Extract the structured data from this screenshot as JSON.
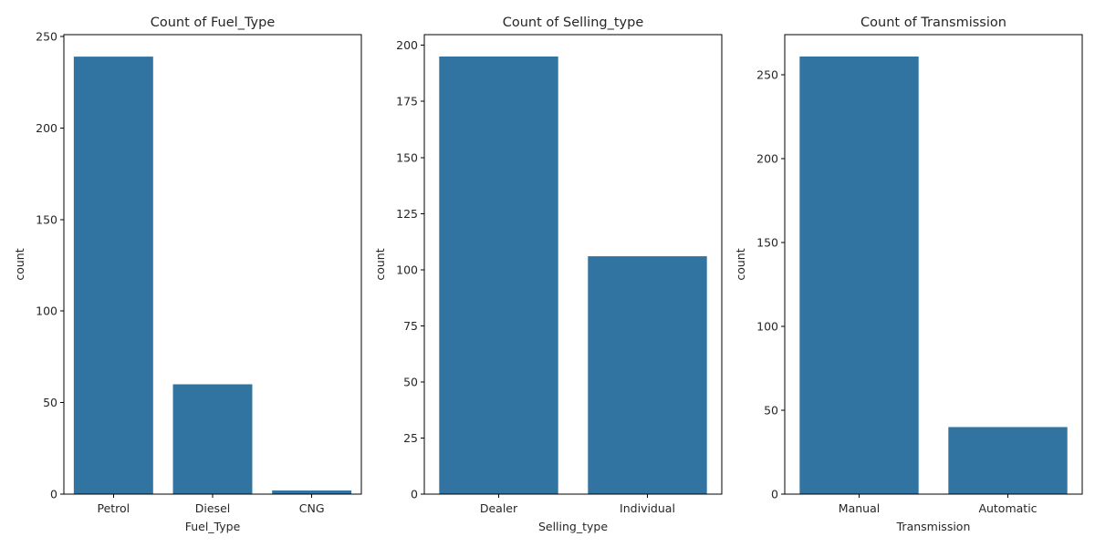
{
  "bar_color": "#3274a1",
  "chart_data": [
    {
      "type": "bar",
      "title": "Count of Fuel_Type",
      "xlabel": "Fuel_Type",
      "ylabel": "count",
      "categories": [
        "Petrol",
        "Diesel",
        "CNG"
      ],
      "values": [
        239,
        60,
        2
      ],
      "ylim": [
        0,
        251
      ],
      "yticks": [
        0,
        50,
        100,
        150,
        200,
        250
      ]
    },
    {
      "type": "bar",
      "title": "Count of Selling_type",
      "xlabel": "Selling_type",
      "ylabel": "count",
      "categories": [
        "Dealer",
        "Individual"
      ],
      "values": [
        195,
        106
      ],
      "ylim": [
        0,
        204.75
      ],
      "yticks": [
        0,
        25,
        50,
        75,
        100,
        125,
        150,
        175,
        200
      ]
    },
    {
      "type": "bar",
      "title": "Count of Transmission",
      "xlabel": "Transmission",
      "ylabel": "count",
      "categories": [
        "Manual",
        "Automatic"
      ],
      "values": [
        261,
        40
      ],
      "ylim": [
        0,
        274.05
      ],
      "yticks": [
        0,
        50,
        100,
        150,
        200,
        250
      ]
    }
  ]
}
